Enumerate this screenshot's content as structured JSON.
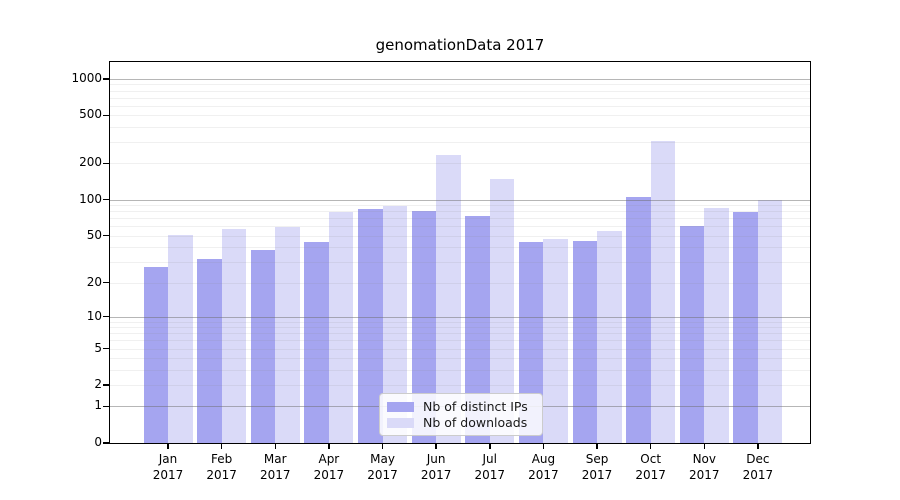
{
  "chart_data": {
    "type": "bar",
    "title": "genomationData 2017",
    "year_label": "2017",
    "categories": [
      "Jan",
      "Feb",
      "Mar",
      "Apr",
      "May",
      "Jun",
      "Jul",
      "Aug",
      "Sep",
      "Oct",
      "Nov",
      "Dec"
    ],
    "series": [
      {
        "name": "Nb of distinct IPs",
        "color": "#a5a5f0",
        "values": [
          27,
          32,
          38,
          44,
          83,
          80,
          73,
          44,
          45,
          105,
          60,
          79
        ]
      },
      {
        "name": "Nb of downloads",
        "color": "#dadaf8",
        "values": [
          51,
          57,
          59,
          79,
          89,
          235,
          148,
          47,
          55,
          305,
          85,
          99
        ]
      }
    ],
    "yscale": "log1p",
    "ylim": [
      0,
      1380
    ],
    "yticks": [
      0,
      1,
      2,
      5,
      10,
      20,
      50,
      100,
      200,
      500,
      1000
    ],
    "ytick_labels": [
      "0",
      "1",
      "2",
      "5",
      "10",
      "20",
      "50",
      "100",
      "200",
      "500",
      "1000"
    ],
    "grid": true,
    "major_grid_values": [
      1,
      10,
      100,
      1000
    ],
    "minor_grid_values": [
      2,
      3,
      4,
      5,
      6,
      7,
      8,
      9,
      20,
      30,
      40,
      50,
      60,
      70,
      80,
      90,
      200,
      300,
      400,
      500,
      600,
      700,
      800,
      900
    ],
    "legend_position": "lower center",
    "xlabel": "",
    "ylabel": ""
  }
}
